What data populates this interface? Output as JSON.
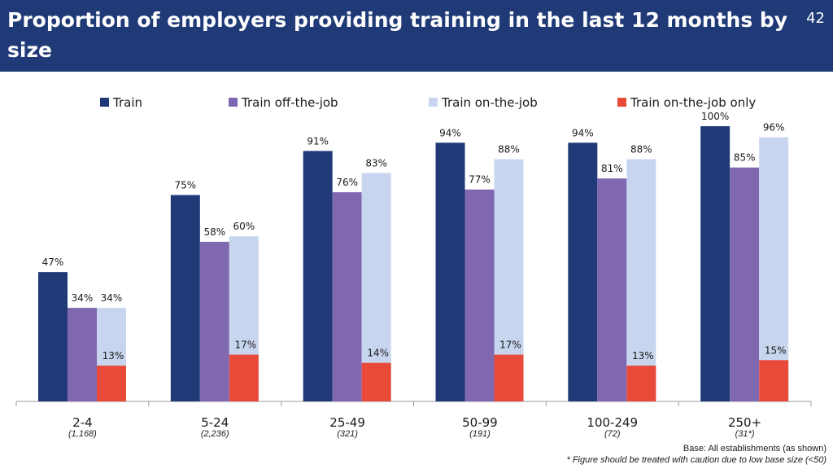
{
  "header": {
    "title": "Proportion of employers providing training in the last 12 months by size",
    "page_number": "42"
  },
  "footnotes": {
    "base": "Base: All establishments (as shown)",
    "caution": "* Figure should be treated with caution due to low base size (<50)"
  },
  "chart_data": {
    "type": "bar",
    "categories": [
      "2-4",
      "5-24",
      "25-49",
      "50-99",
      "100-249",
      "250+"
    ],
    "base_sizes": [
      "(1,168)",
      "(2,236)",
      "(321)",
      "(191)",
      "(72)",
      "(31*)"
    ],
    "series": [
      {
        "name": "Train",
        "color": "#1f3a77",
        "values": [
          47,
          75,
          91,
          94,
          94,
          100
        ],
        "labels": [
          "47%",
          "75%",
          "91%",
          "94%",
          "94%",
          "100%"
        ]
      },
      {
        "name": "Train off-the-job",
        "color": "#8068b0",
        "values": [
          34,
          58,
          76,
          77,
          81,
          85
        ],
        "labels": [
          "34%",
          "58%",
          "76%",
          "77%",
          "81%",
          "85%"
        ]
      },
      {
        "name": "Train on-the-job",
        "color": "#c8d5ee",
        "values": [
          34,
          60,
          83,
          88,
          88,
          96
        ],
        "labels": [
          "34%",
          "60%",
          "83%",
          "88%",
          "88%",
          "96%"
        ]
      },
      {
        "name": "Train on-the-job only",
        "color": "#e84a3a",
        "values": [
          13,
          17,
          14,
          17,
          13,
          15
        ],
        "labels": [
          "13%",
          "17%",
          "14%",
          "17%",
          "13%",
          "15%"
        ]
      }
    ],
    "ylim": [
      0,
      100
    ],
    "legend_position": "top",
    "grid": false
  }
}
